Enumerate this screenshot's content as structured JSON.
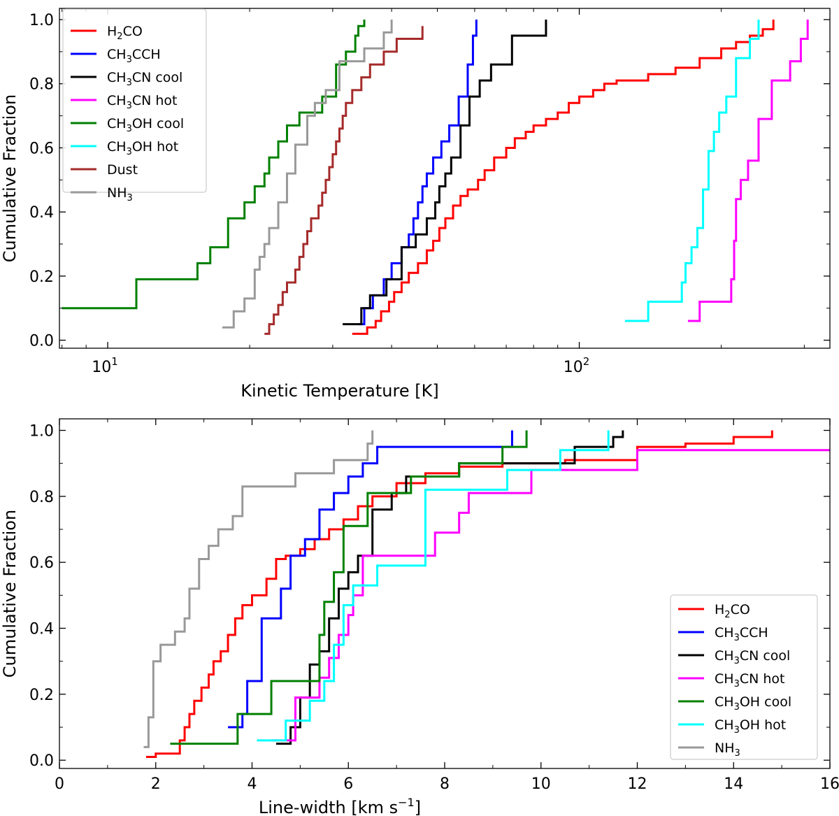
{
  "chart_data": [
    {
      "type": "line",
      "title": "",
      "xlabel": "Kinetic Temperature [K]",
      "ylabel": "Cumulative Fraction",
      "xscale": "log",
      "xlim": [
        7.9,
        340
      ],
      "ylim": [
        -0.025,
        1.035
      ],
      "grid": false,
      "legend": "top-left",
      "xticks": [
        {
          "value": 10,
          "base": "10",
          "exp": "1"
        },
        {
          "value": 100,
          "base": "10",
          "exp": "2"
        }
      ],
      "yticks": [
        "0.0",
        "0.2",
        "0.4",
        "0.6",
        "0.8",
        "1.0"
      ],
      "series": [
        {
          "name": "H2CO",
          "label_parts": [
            "H",
            "2",
            "CO"
          ],
          "color": "#ff0000",
          "x": [
            33.0,
            35.5,
            37.0,
            38.0,
            39.5,
            40.5,
            42.0,
            43.5,
            45.5,
            47.5,
            49.0,
            50.5,
            52.0,
            54.0,
            56.0,
            58.0,
            61.0,
            63.0,
            66.0,
            70.0,
            73.0,
            77.0,
            80.0,
            85.0,
            90.0,
            95.0,
            100.0,
            107.0,
            113.0,
            120.0,
            140.0,
            160.0,
            180.0,
            200.0,
            215.0,
            230.0,
            245.0,
            258.0
          ],
          "y": [
            0.02,
            0.04,
            0.06,
            0.09,
            0.12,
            0.15,
            0.18,
            0.21,
            0.24,
            0.28,
            0.31,
            0.35,
            0.38,
            0.42,
            0.45,
            0.47,
            0.5,
            0.53,
            0.57,
            0.6,
            0.63,
            0.65,
            0.67,
            0.69,
            0.71,
            0.74,
            0.76,
            0.78,
            0.8,
            0.81,
            0.83,
            0.85,
            0.88,
            0.91,
            0.93,
            0.95,
            0.97,
            1.0
          ]
        },
        {
          "name": "CH3CCH",
          "label_parts": [
            "CH",
            "3",
            "CCH"
          ],
          "color": "#0000ff",
          "x": [
            34.0,
            35.0,
            36.5,
            38.5,
            40.0,
            42.0,
            43.5,
            44.5,
            45.5,
            46.5,
            47.5,
            49.0,
            51.0,
            53.0,
            55.5,
            58.0,
            59.5,
            60.5
          ],
          "y": [
            0.05,
            0.1,
            0.14,
            0.19,
            0.24,
            0.29,
            0.33,
            0.38,
            0.43,
            0.48,
            0.52,
            0.57,
            0.62,
            0.67,
            0.76,
            0.86,
            0.95,
            1.0
          ]
        },
        {
          "name": "CH3CN cool",
          "label_parts": [
            "CH",
            "3",
            "CN cool"
          ],
          "color": "#000000",
          "x": [
            31.5,
            34.5,
            36.0,
            39.0,
            42.0,
            45.0,
            47.5,
            49.5,
            50.5,
            52.0,
            53.5,
            56.0,
            58.5,
            61.5,
            65.0,
            72.0,
            85.0
          ],
          "y": [
            0.05,
            0.1,
            0.14,
            0.19,
            0.29,
            0.33,
            0.38,
            0.43,
            0.48,
            0.52,
            0.57,
            0.67,
            0.76,
            0.81,
            0.86,
            0.95,
            1.0
          ]
        },
        {
          "name": "CH3CN hot",
          "label_parts": [
            "CH",
            "3",
            "CN hot"
          ],
          "color": "#ff00ff",
          "x": [
            170.0,
            180.0,
            210.0,
            213.0,
            215.0,
            220.0,
            228.0,
            240.0,
            256.0,
            280.0,
            295.0,
            305.0
          ],
          "y": [
            0.06,
            0.12,
            0.19,
            0.31,
            0.44,
            0.5,
            0.56,
            0.69,
            0.81,
            0.87,
            0.94,
            1.0
          ]
        },
        {
          "name": "CH3OH cool",
          "label_parts": [
            "CH",
            "3",
            "OH cool"
          ],
          "color": "#008000",
          "x": [
            8.0,
            11.5,
            15.5,
            16.5,
            18.0,
            19.5,
            20.5,
            21.5,
            22.0,
            23.0,
            24.0,
            25.5,
            28.5,
            30.5,
            32.0,
            33.5,
            34.0,
            35.0
          ],
          "y": [
            0.1,
            0.19,
            0.24,
            0.29,
            0.38,
            0.43,
            0.48,
            0.52,
            0.57,
            0.62,
            0.67,
            0.71,
            0.76,
            0.86,
            0.9,
            0.95,
            0.98,
            1.0
          ]
        },
        {
          "name": "CH3OH hot",
          "label_parts": [
            "CH",
            "3",
            "OH hot"
          ],
          "color": "#00ffff",
          "x": [
            125.0,
            140.0,
            165.0,
            168.0,
            173.0,
            178.0,
            183.0,
            188.0,
            193.0,
            198.0,
            205.0,
            215.0,
            230.0,
            240.0
          ],
          "y": [
            0.06,
            0.12,
            0.18,
            0.24,
            0.29,
            0.35,
            0.47,
            0.59,
            0.65,
            0.71,
            0.76,
            0.88,
            0.94,
            1.0
          ]
        },
        {
          "name": "Dust",
          "label_parts": [
            "Dust",
            "",
            ""
          ],
          "color": "#a52a2a",
          "x": [
            21.5,
            22.0,
            22.5,
            23.0,
            23.5,
            24.0,
            25.0,
            25.5,
            26.0,
            26.5,
            27.0,
            28.0,
            28.5,
            29.0,
            29.5,
            30.0,
            30.5,
            31.0,
            31.5,
            32.0,
            33.0,
            34.5,
            36.0,
            38.5,
            41.0,
            46.5
          ],
          "y": [
            0.02,
            0.05,
            0.08,
            0.11,
            0.15,
            0.18,
            0.22,
            0.26,
            0.3,
            0.34,
            0.38,
            0.42,
            0.46,
            0.5,
            0.54,
            0.58,
            0.62,
            0.66,
            0.7,
            0.74,
            0.78,
            0.82,
            0.86,
            0.9,
            0.94,
            0.98
          ]
        },
        {
          "name": "NH3",
          "label_parts": [
            "NH",
            "3",
            ""
          ],
          "color": "#999999",
          "x": [
            17.5,
            18.5,
            19.5,
            20.5,
            21.0,
            21.5,
            22.0,
            23.0,
            24.0,
            25.0,
            26.5,
            27.5,
            29.0,
            31.0,
            35.0,
            38.5,
            40.0
          ],
          "y": [
            0.04,
            0.09,
            0.13,
            0.22,
            0.26,
            0.3,
            0.35,
            0.43,
            0.52,
            0.61,
            0.7,
            0.74,
            0.78,
            0.87,
            0.91,
            0.96,
            1.0
          ]
        }
      ]
    },
    {
      "type": "line",
      "title": "",
      "xlabel": "Line-width [km s",
      "xlabel_sup": "−1",
      "xlabel_end": "]",
      "ylabel": "Cumulative Fraction",
      "xscale": "linear",
      "xlim": [
        0,
        16
      ],
      "ylim": [
        -0.025,
        1.035
      ],
      "grid": false,
      "legend": "bottom-right",
      "xticks": [
        {
          "value": 0,
          "label": "0"
        },
        {
          "value": 2,
          "label": "2"
        },
        {
          "value": 4,
          "label": "4"
        },
        {
          "value": 6,
          "label": "6"
        },
        {
          "value": 8,
          "label": "8"
        },
        {
          "value": 10,
          "label": "10"
        },
        {
          "value": 12,
          "label": "12"
        },
        {
          "value": 14,
          "label": "14"
        },
        {
          "value": 16,
          "label": "16"
        }
      ],
      "yticks": [
        "0.0",
        "0.2",
        "0.4",
        "0.6",
        "0.8",
        "1.0"
      ],
      "series": [
        {
          "name": "H2CO",
          "label_parts": [
            "H",
            "2",
            "CO"
          ],
          "color": "#ff0000",
          "x": [
            1.8,
            2.0,
            2.5,
            2.6,
            2.7,
            2.8,
            2.95,
            3.1,
            3.2,
            3.35,
            3.5,
            3.65,
            3.8,
            4.0,
            4.3,
            4.5,
            4.7,
            5.0,
            5.3,
            5.6,
            5.9,
            6.2,
            6.5,
            7.0,
            7.6,
            8.3,
            9.2,
            10.5,
            12.0,
            13.0,
            14.0,
            14.8
          ],
          "y": [
            0.01,
            0.02,
            0.06,
            0.1,
            0.14,
            0.18,
            0.22,
            0.26,
            0.3,
            0.33,
            0.38,
            0.43,
            0.47,
            0.5,
            0.55,
            0.61,
            0.62,
            0.64,
            0.67,
            0.7,
            0.73,
            0.77,
            0.8,
            0.84,
            0.87,
            0.89,
            0.9,
            0.91,
            0.95,
            0.96,
            0.98,
            1.0
          ]
        },
        {
          "name": "CH3CCH",
          "label_parts": [
            "CH",
            "3",
            "CCH"
          ],
          "color": "#0000ff",
          "x": [
            3.5,
            3.8,
            3.9,
            4.2,
            4.6,
            4.8,
            5.1,
            5.4,
            5.7,
            6.0,
            6.3,
            6.6,
            7.4,
            9.4
          ],
          "y": [
            0.1,
            0.14,
            0.24,
            0.43,
            0.52,
            0.62,
            0.67,
            0.76,
            0.81,
            0.86,
            0.9,
            0.95,
            0.95,
            1.0
          ]
        },
        {
          "name": "CH3CN cool",
          "label_parts": [
            "CH",
            "3",
            "CN cool"
          ],
          "color": "#000000",
          "x": [
            4.5,
            4.8,
            5.0,
            5.2,
            5.4,
            5.6,
            5.8,
            6.0,
            6.2,
            6.5,
            6.9,
            7.2,
            8.3,
            10.7,
            11.5,
            11.7
          ],
          "y": [
            0.05,
            0.1,
            0.19,
            0.29,
            0.33,
            0.43,
            0.52,
            0.57,
            0.62,
            0.76,
            0.81,
            0.86,
            0.9,
            0.95,
            0.98,
            1.0
          ]
        },
        {
          "name": "CH3CN hot",
          "label_parts": [
            "CH",
            "3",
            "CN hot"
          ],
          "color": "#ff00ff",
          "x": [
            4.4,
            4.9,
            5.4,
            5.6,
            5.8,
            6.0,
            6.1,
            6.3,
            7.4,
            7.8,
            8.3,
            8.5,
            9.8,
            12.0,
            16.0
          ],
          "y": [
            0.06,
            0.19,
            0.25,
            0.31,
            0.38,
            0.44,
            0.5,
            0.62,
            0.62,
            0.69,
            0.75,
            0.81,
            0.88,
            0.94,
            0.94
          ]
        },
        {
          "name": "CH3OH cool",
          "label_parts": [
            "CH",
            "3",
            "OH cool"
          ],
          "color": "#008000",
          "x": [
            2.3,
            3.7,
            4.4,
            5.4,
            5.5,
            5.7,
            5.9,
            6.4,
            6.7,
            7.3,
            8.3,
            9.2,
            9.7
          ],
          "y": [
            0.05,
            0.14,
            0.24,
            0.38,
            0.48,
            0.57,
            0.71,
            0.81,
            0.81,
            0.86,
            0.9,
            0.95,
            1.0
          ]
        },
        {
          "name": "CH3OH hot",
          "label_parts": [
            "CH",
            "3",
            "OH hot"
          ],
          "color": "#00ffff",
          "x": [
            4.1,
            4.7,
            5.2,
            5.5,
            5.7,
            5.9,
            6.1,
            6.6,
            7.6,
            9.3,
            10.4,
            10.6,
            11.4
          ],
          "y": [
            0.06,
            0.12,
            0.18,
            0.24,
            0.35,
            0.47,
            0.53,
            0.59,
            0.82,
            0.88,
            0.94,
            0.94,
            1.0
          ]
        },
        {
          "name": "NH3",
          "label_parts": [
            "NH",
            "3",
            ""
          ],
          "color": "#999999",
          "x": [
            1.75,
            1.85,
            1.95,
            2.1,
            2.4,
            2.6,
            2.7,
            2.9,
            3.1,
            3.3,
            3.6,
            3.8,
            4.3,
            4.9,
            5.7,
            6.4,
            6.5
          ],
          "y": [
            0.04,
            0.13,
            0.3,
            0.35,
            0.39,
            0.43,
            0.52,
            0.61,
            0.65,
            0.7,
            0.74,
            0.83,
            0.83,
            0.87,
            0.91,
            0.96,
            1.0
          ]
        }
      ]
    }
  ]
}
